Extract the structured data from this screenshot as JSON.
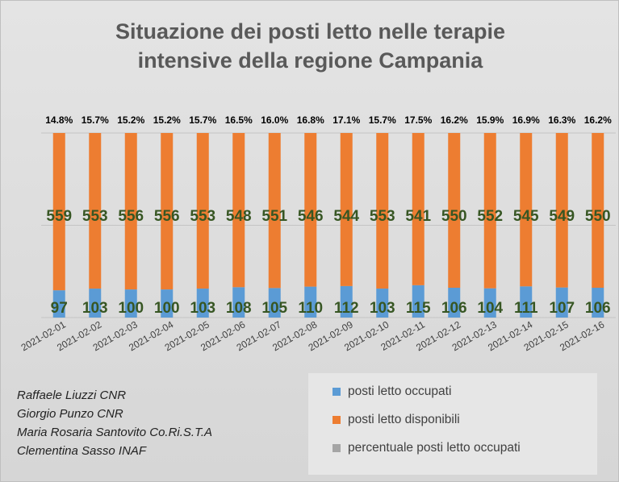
{
  "title_line1": "Situazione dei posti letto nelle terapie",
  "title_line2": "intensive della regione Campania",
  "credits": [
    "Raffaele Liuzzi CNR",
    "Giorgio Punzo CNR",
    "Maria Rosaria Santovito Co.Ri.S.T.A",
    "Clementina Sasso INAF"
  ],
  "colors": {
    "occupied": "#5b9bd5",
    "available": "#ed7d31",
    "percentage": "#a5a5a5",
    "value_label": "#375623"
  },
  "chart_data": {
    "type": "bar",
    "stacked": true,
    "title": "Situazione dei posti letto nelle terapie intensive della regione Campania",
    "categories": [
      "2021-02-01",
      "2021-02-02",
      "2021-02-03",
      "2021-02-04",
      "2021-02-05",
      "2021-02-06",
      "2021-02-07",
      "2021-02-08",
      "2021-02-09",
      "2021-02-10",
      "2021-02-11",
      "2021-02-12",
      "2021-02-13",
      "2021-02-14",
      "2021-02-15",
      "2021-02-16"
    ],
    "series": [
      {
        "name": "posti letto occupati",
        "values": [
          97,
          103,
          100,
          100,
          103,
          108,
          105,
          110,
          112,
          103,
          115,
          106,
          104,
          111,
          107,
          106
        ]
      },
      {
        "name": "posti letto disponibili",
        "values": [
          559,
          553,
          556,
          556,
          553,
          548,
          551,
          546,
          544,
          553,
          541,
          550,
          552,
          545,
          549,
          550
        ]
      },
      {
        "name": "percentuale posti letto occupati",
        "labels": [
          "14.8%",
          "15.7%",
          "15.2%",
          "15.2%",
          "15.7%",
          "16.5%",
          "16.0%",
          "16.8%",
          "17.1%",
          "15.7%",
          "17.5%",
          "16.2%",
          "15.9%",
          "16.9%",
          "16.3%",
          "16.2%"
        ]
      }
    ],
    "ylim": [
      0,
      656
    ],
    "grid": true,
    "legend_position": "bottom-right"
  }
}
